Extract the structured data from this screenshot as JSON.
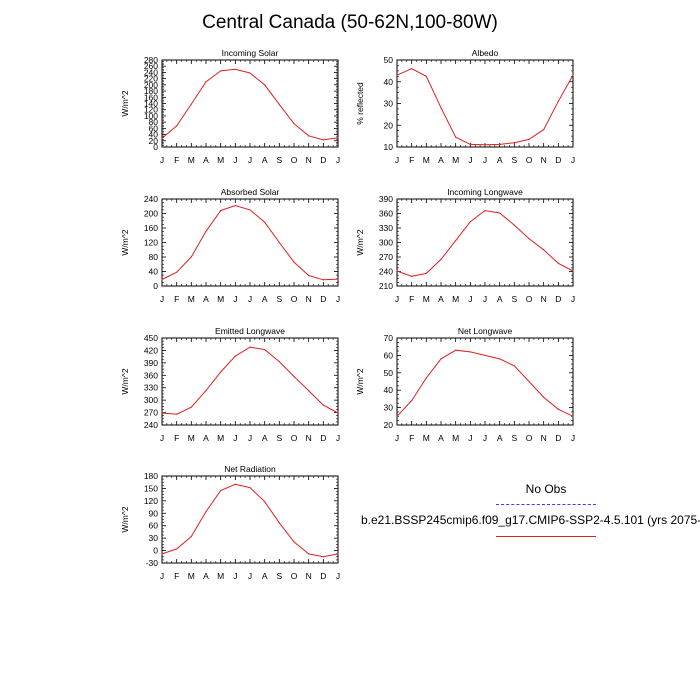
{
  "title": "Central Canada (50-62N,100-80W)",
  "legend": {
    "obs_label": "No Obs",
    "run_label": "b.e21.BSSP245cmip6.f09_g17.CMIP6-SSP2-4.5.101 (yrs 2075-",
    "obs_color": "#3b3bff",
    "run_color": "#e02020"
  },
  "months": [
    "J",
    "F",
    "M",
    "A",
    "M",
    "J",
    "J",
    "A",
    "S",
    "O",
    "N",
    "D",
    "J"
  ],
  "chart_data": [
    {
      "type": "line",
      "title": "Incoming Solar",
      "ylabel": "W/m^2",
      "ylim": [
        0,
        280
      ],
      "yticks": [
        0,
        20,
        40,
        60,
        80,
        100,
        120,
        140,
        160,
        180,
        200,
        220,
        240,
        260,
        280
      ],
      "x": [
        "J",
        "F",
        "M",
        "A",
        "M",
        "J",
        "J",
        "A",
        "S",
        "O",
        "N",
        "D",
        "J"
      ],
      "series": [
        {
          "values": [
            28,
            68,
            138,
            210,
            245,
            250,
            238,
            200,
            137,
            75,
            36,
            23,
            30
          ]
        }
      ]
    },
    {
      "type": "line",
      "title": "Albedo",
      "ylabel": "% reflected",
      "ylim": [
        10,
        50
      ],
      "yticks": [
        10,
        20,
        30,
        40,
        50
      ],
      "x": [
        "J",
        "F",
        "M",
        "A",
        "M",
        "J",
        "J",
        "A",
        "S",
        "O",
        "N",
        "D",
        "J"
      ],
      "series": [
        {
          "values": [
            43,
            46,
            42.5,
            28,
            14.5,
            11.2,
            11,
            11.2,
            12,
            13.5,
            18,
            31,
            43
          ]
        }
      ]
    },
    {
      "type": "line",
      "title": "Absorbed Solar",
      "ylabel": "W/m^2",
      "ylim": [
        0,
        240
      ],
      "yticks": [
        0,
        40,
        80,
        120,
        160,
        200,
        240
      ],
      "x": [
        "J",
        "F",
        "M",
        "A",
        "M",
        "J",
        "J",
        "A",
        "S",
        "O",
        "N",
        "D",
        "J"
      ],
      "series": [
        {
          "values": [
            18,
            38,
            80,
            151,
            208,
            222,
            210,
            176,
            120,
            66,
            29,
            17,
            19
          ]
        }
      ]
    },
    {
      "type": "line",
      "title": "Incoming Longwave",
      "ylabel": "W/m^2",
      "ylim": [
        210,
        390
      ],
      "yticks": [
        210,
        240,
        270,
        300,
        330,
        360,
        390
      ],
      "x": [
        "J",
        "F",
        "M",
        "A",
        "M",
        "J",
        "J",
        "A",
        "S",
        "O",
        "N",
        "D",
        "J"
      ],
      "series": [
        {
          "values": [
            241,
            230,
            236,
            265,
            304,
            343,
            366,
            361,
            336,
            308,
            285,
            257,
            241
          ]
        }
      ]
    },
    {
      "type": "line",
      "title": "Emitted Longwave",
      "ylabel": "W/m^2",
      "ylim": [
        240,
        450
      ],
      "yticks": [
        240,
        270,
        300,
        330,
        360,
        390,
        420,
        450
      ],
      "x": [
        "J",
        "F",
        "M",
        "A",
        "M",
        "J",
        "J",
        "A",
        "S",
        "O",
        "N",
        "D",
        "J"
      ],
      "series": [
        {
          "values": [
            269,
            266,
            283,
            323,
            368,
            406,
            428,
            422,
            393,
            357,
            323,
            288,
            269
          ]
        }
      ]
    },
    {
      "type": "line",
      "title": "Net Longwave",
      "ylabel": "W/m^2",
      "ylim": [
        20,
        70
      ],
      "yticks": [
        20,
        30,
        40,
        50,
        60,
        70
      ],
      "x": [
        "J",
        "F",
        "M",
        "A",
        "M",
        "J",
        "J",
        "A",
        "S",
        "O",
        "N",
        "D",
        "J"
      ],
      "series": [
        {
          "values": [
            25,
            34,
            47,
            58,
            63,
            62,
            60,
            58,
            54,
            45,
            36,
            29,
            25
          ]
        }
      ]
    },
    {
      "type": "line",
      "title": "Net Radiation",
      "ylabel": "W/m^2",
      "ylim": [
        -30,
        180
      ],
      "yticks": [
        -30,
        0,
        30,
        60,
        90,
        120,
        150,
        180
      ],
      "x": [
        "J",
        "F",
        "M",
        "A",
        "M",
        "J",
        "J",
        "A",
        "S",
        "O",
        "N",
        "D",
        "J"
      ],
      "series": [
        {
          "values": [
            -8,
            4,
            34,
            94,
            145,
            160,
            152,
            118,
            67,
            21,
            -8,
            -15,
            -8
          ]
        }
      ]
    }
  ]
}
